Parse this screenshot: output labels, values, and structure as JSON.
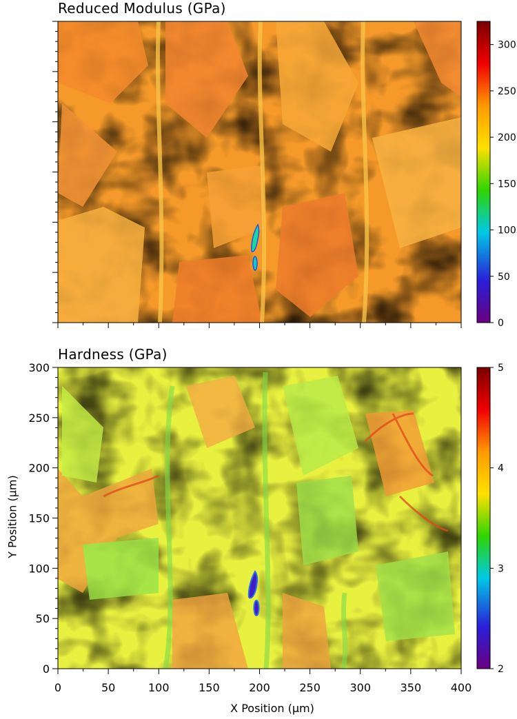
{
  "chart_data": [
    {
      "type": "heatmap",
      "title": "Reduced Modulus (GPa)",
      "xlim": [
        0,
        400
      ],
      "ylim": [
        0,
        300
      ],
      "xticks": [],
      "yticks": [],
      "colorbar": {
        "range": [
          0,
          325
        ],
        "ticks": [
          0,
          50,
          100,
          150,
          200,
          250,
          300
        ],
        "tick_labels": [
          "0",
          "50",
          "100",
          "150",
          "200",
          "250",
          "300"
        ],
        "colors": [
          "#6a0080",
          "#2a1fd8",
          "#00c8e6",
          "#2fd400",
          "#ffe000",
          "#ff9a00",
          "#f00000",
          "#7a0000"
        ]
      },
      "typical_value_range": [
        170,
        220
      ],
      "low_value_feature": {
        "x": [
          190,
          200
        ],
        "y": [
          70,
          95
        ],
        "value_range": [
          60,
          110
        ]
      }
    },
    {
      "type": "heatmap",
      "title": "Hardness (GPa)",
      "xlabel": "X Position (μm)",
      "ylabel": "Y Position (μm)",
      "xlim": [
        0,
        400
      ],
      "ylim": [
        0,
        300
      ],
      "xticks": [
        0,
        50,
        100,
        150,
        200,
        250,
        300,
        350,
        400
      ],
      "xtick_labels": [
        "0",
        "50",
        "100",
        "150",
        "200",
        "250",
        "300",
        "350",
        "400"
      ],
      "yticks": [
        0,
        50,
        100,
        150,
        200,
        250,
        300
      ],
      "ytick_labels": [
        "0",
        "50",
        "100",
        "150",
        "200",
        "250",
        "300"
      ],
      "colorbar": {
        "range": [
          2,
          5
        ],
        "ticks": [
          2,
          3,
          4,
          5
        ],
        "tick_labels": [
          "2",
          "3",
          "4",
          "5"
        ],
        "colors": [
          "#6a0080",
          "#2a1fd8",
          "#00c8e6",
          "#2fd400",
          "#ffe000",
          "#ff9a00",
          "#f00000",
          "#7a0000"
        ]
      },
      "typical_value_range": [
        3.0,
        3.9
      ],
      "low_value_feature": {
        "x": [
          190,
          200
        ],
        "y": [
          52,
          98
        ],
        "value_range": [
          2.0,
          2.3
        ]
      }
    }
  ]
}
